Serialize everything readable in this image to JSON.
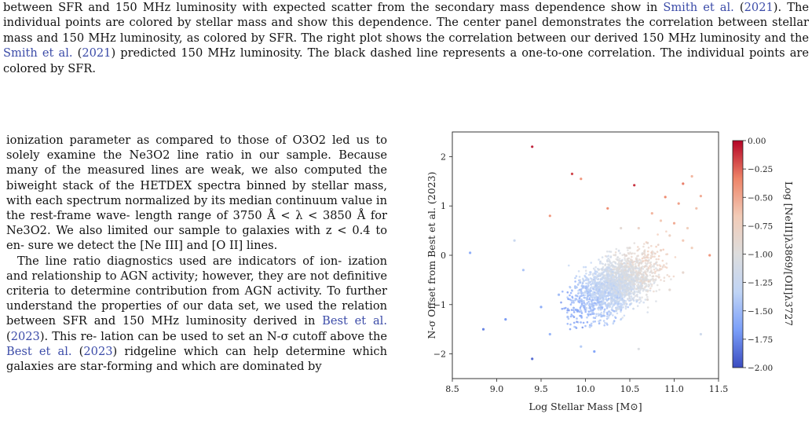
{
  "caption": {
    "lines": [
      {
        "pre": "between SFR and 150 MHz luminosity with expected scatter from the secondary mass dependence show in ",
        "link": "Smith et al.",
        "mid": " (",
        "link2": "2021",
        "post": ")."
      },
      {
        "pre": "The individual points are colored by stellar mass and show this dependence. The center panel demonstrates the correlation",
        "link": "",
        "mid": "",
        "link2": "",
        "post": ""
      },
      {
        "pre": "between stellar mass and 150 MHz luminosity, as colored by SFR. The right plot shows the correlation between our derived",
        "link": "",
        "mid": "",
        "link2": "",
        "post": ""
      },
      {
        "pre": "150 MHz luminosity and the ",
        "link": "Smith et al.",
        "mid": " (",
        "link2": "2021",
        "post": ") predicted 150 MHz luminosity. The black dashed line represents a one-to-one"
      },
      {
        "pre": "correlation. The individual points are colored by SFR.",
        "link": "",
        "mid": "",
        "link2": "",
        "post": ""
      }
    ]
  },
  "body": {
    "p1": [
      "ionization parameter as compared to those of O3O2 led",
      "us to solely examine the Ne3O2 line ratio in our sample.",
      "Because many of the measured lines are weak, we also",
      "computed the biweight stack of the HETDEX spectra",
      "binned by stellar mass, with each spectrum normalized",
      "by its median continuum value in the rest-frame wave-",
      "length range of 3750 Å < λ < 3850 Å for Ne3O2. We",
      "also limited our sample to galaxies with z < 0.4 to en-",
      "sure we detect the [Ne III] and [O II] lines."
    ],
    "p2_lines": [
      {
        "pre": "The line ratio diagnostics used are indicators of ion-"
      },
      {
        "pre": "ization and relationship to AGN activity; however, they"
      },
      {
        "pre": "are not definitive criteria to determine contribution from"
      },
      {
        "pre": "AGN activity. To further understand the properties of"
      },
      {
        "pre": "our data set, we used the relation between SFR and 150"
      },
      {
        "pre": "MHz luminosity derived in ",
        "link": "Best et al.",
        "mid": " (",
        "link2": "2023",
        "post": "). This re-"
      },
      {
        "pre": "lation can be used to set an N-σ cutoff above the ",
        "link": "Best",
        "mid": "",
        "link2": "",
        "post": ""
      },
      {
        "pre": "",
        "link": "et al.",
        "mid": " (",
        "link2": "2023",
        "post": ") ridgeline which can help determine which"
      },
      {
        "pre": "galaxies are star-forming and which are dominated by"
      }
    ]
  },
  "chart_data": {
    "type": "scatter",
    "title": "",
    "xlabel": "Log Stellar Mass [M⊙]",
    "ylabel": "N-σ Offset from Best et al. (2023)",
    "xlim": [
      8.5,
      11.5
    ],
    "ylim": [
      -2.5,
      2.5
    ],
    "xticks": [
      "8.5",
      "9.0",
      "9.5",
      "10.0",
      "10.5",
      "11.0",
      "11.5"
    ],
    "yticks": [
      "2",
      "1",
      "0",
      "−1",
      "−2"
    ],
    "colorbar": {
      "label": "Log [NeIII]λ3869/[OII]λ3727",
      "ticks": [
        "0.00",
        "−0.25",
        "−0.50",
        "−0.75",
        "−1.00",
        "−1.25",
        "−1.50",
        "−1.75",
        "−2.00"
      ],
      "range": [
        -2.0,
        0.0
      ],
      "colormap": [
        "#3b4cc0",
        "#7b9ff9",
        "#c0d4f5",
        "#dddddd",
        "#f2cbb7",
        "#ee8468",
        "#b40426"
      ]
    },
    "series": [
      {
        "points": [
          [
            9.4,
            2.2,
            -0.05
          ],
          [
            9.85,
            1.65,
            -0.15
          ],
          [
            9.95,
            1.55,
            -0.4
          ],
          [
            10.55,
            1.42,
            -0.1
          ],
          [
            11.1,
            1.45,
            -0.3
          ],
          [
            11.2,
            1.6,
            -0.55
          ],
          [
            10.9,
            1.18,
            -0.35
          ],
          [
            11.05,
            1.05,
            -0.45
          ],
          [
            11.25,
            0.95,
            -0.6
          ],
          [
            10.75,
            0.85,
            -0.55
          ],
          [
            10.85,
            0.7,
            -0.65
          ],
          [
            11.0,
            0.65,
            -0.5
          ],
          [
            11.15,
            0.55,
            -0.7
          ],
          [
            10.6,
            0.55,
            -0.8
          ],
          [
            10.95,
            0.4,
            -0.75
          ],
          [
            11.1,
            0.3,
            -0.65
          ],
          [
            10.7,
            0.25,
            -0.85
          ],
          [
            10.5,
            0.15,
            -0.95
          ],
          [
            10.85,
            0.1,
            -0.8
          ],
          [
            11.2,
            0.15,
            -0.7
          ],
          [
            10.3,
            -0.2,
            -1.1
          ],
          [
            10.1,
            -0.45,
            -1.3
          ],
          [
            9.9,
            -0.65,
            -1.4
          ],
          [
            10.2,
            -0.75,
            -1.25
          ],
          [
            10.45,
            -0.55,
            -1.05
          ],
          [
            9.7,
            -0.8,
            -1.5
          ],
          [
            10.0,
            -1.0,
            -1.35
          ],
          [
            10.35,
            -1.1,
            -1.15
          ],
          [
            9.5,
            -1.05,
            -1.6
          ],
          [
            9.8,
            -1.25,
            -1.45
          ],
          [
            10.05,
            -1.45,
            -1.3
          ],
          [
            9.6,
            -1.6,
            -1.55
          ],
          [
            9.95,
            -1.85,
            -1.4
          ],
          [
            10.6,
            -1.9,
            -1.05
          ],
          [
            11.3,
            -1.6,
            -1.2
          ],
          [
            9.1,
            -1.3,
            -1.7
          ],
          [
            8.85,
            -1.5,
            -1.8
          ],
          [
            9.3,
            -0.3,
            -1.45
          ],
          [
            9.2,
            0.3,
            -1.25
          ],
          [
            8.7,
            0.05,
            -1.6
          ],
          [
            10.7,
            -0.9,
            -0.95
          ],
          [
            10.95,
            -0.7,
            -0.9
          ],
          [
            11.1,
            -0.35,
            -0.85
          ],
          [
            10.4,
            0.55,
            -0.9
          ],
          [
            9.6,
            0.8,
            -0.4
          ],
          [
            10.25,
            0.95,
            -0.35
          ],
          [
            11.3,
            1.2,
            -0.5
          ],
          [
            10.1,
            -1.95,
            -1.65
          ],
          [
            9.4,
            -2.1,
            -1.9
          ],
          [
            11.4,
            0.0,
            -0.4
          ]
        ]
      }
    ]
  }
}
